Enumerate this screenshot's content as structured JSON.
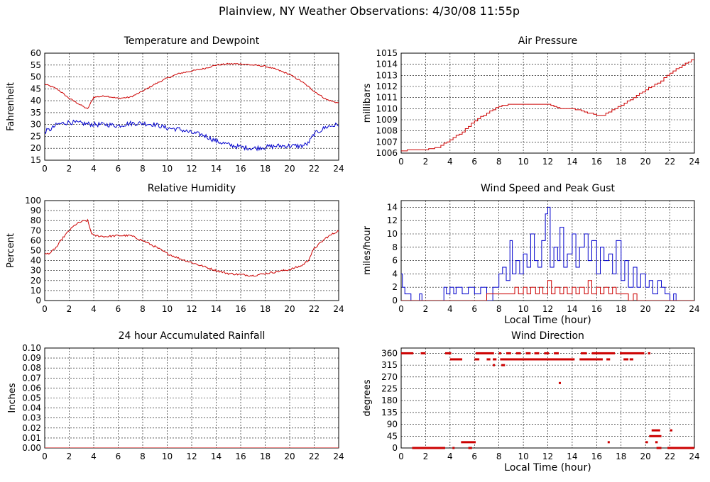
{
  "page": {
    "title": "Plainview, NY Weather Observations: 4/30/08 11:55p"
  },
  "colors": {
    "temperature": "#cc0000",
    "dewpoint": "#0000cc",
    "grid": "#000000"
  },
  "chart_data": [
    {
      "id": "temp",
      "type": "line",
      "title": "Temperature and Dewpoint",
      "xlabel": "",
      "ylabel": "Fahrenheit",
      "xlim": [
        0,
        24
      ],
      "ylim": [
        15,
        60
      ],
      "xticks": [
        0,
        2,
        4,
        6,
        8,
        10,
        12,
        14,
        16,
        18,
        20,
        22,
        24
      ],
      "yticks": [
        15,
        20,
        25,
        30,
        35,
        40,
        45,
        50,
        55,
        60
      ],
      "grid": true,
      "series": [
        {
          "color": "#cc0000",
          "noise": 0.3,
          "x": [
            0,
            1,
            2,
            3,
            3.5,
            3.7,
            4,
            5,
            6,
            7,
            8,
            9,
            10,
            11,
            12,
            13,
            14,
            15,
            16,
            17,
            18,
            19,
            20,
            21,
            22,
            23,
            24
          ],
          "y": [
            47,
            45,
            41,
            38,
            36.5,
            38.5,
            41.5,
            42,
            41,
            41.5,
            44,
            47,
            49.5,
            51.5,
            52.5,
            53.5,
            55,
            55.5,
            55.5,
            55,
            54.5,
            53,
            51,
            48,
            44,
            40.5,
            39
          ]
        },
        {
          "color": "#0000cc",
          "noise": 1.0,
          "x": [
            0,
            0.5,
            1,
            2,
            3,
            4,
            5,
            6,
            7,
            8,
            9,
            10,
            11,
            12,
            13,
            14,
            15,
            16,
            17,
            18,
            19,
            20,
            21,
            21.5,
            22,
            23,
            24
          ],
          "y": [
            27,
            28,
            30,
            31,
            30.5,
            30,
            30,
            29.5,
            30.5,
            30.5,
            30,
            28.5,
            28,
            26.5,
            25.5,
            23,
            21.5,
            20.5,
            20,
            20.5,
            21,
            21,
            21,
            22,
            26,
            29,
            30
          ]
        }
      ]
    },
    {
      "id": "pressure",
      "type": "line",
      "title": "Air Pressure",
      "xlabel": "",
      "ylabel": "millibars",
      "xlim": [
        0,
        24
      ],
      "ylim": [
        1006,
        1015
      ],
      "xticks": [
        0,
        2,
        4,
        6,
        8,
        10,
        12,
        14,
        16,
        18,
        20,
        22,
        24
      ],
      "yticks": [
        1006,
        1007,
        1008,
        1009,
        1010,
        1011,
        1012,
        1013,
        1014,
        1015
      ],
      "grid": true,
      "series": [
        {
          "color": "#cc0000",
          "noise": 0,
          "x": [
            0,
            1,
            2,
            3,
            4,
            5,
            6,
            7,
            8,
            9,
            10,
            11,
            12,
            13,
            14,
            15,
            16,
            16.5,
            17,
            18,
            19,
            20,
            21,
            22,
            23,
            24
          ],
          "y": [
            1006.2,
            1006.3,
            1006.3,
            1006.5,
            1007.2,
            1007.9,
            1008.9,
            1009.6,
            1010.2,
            1010.4,
            1010.4,
            1010.4,
            1010.4,
            1010.0,
            1010.0,
            1009.7,
            1009.4,
            1009.4,
            1009.7,
            1010.3,
            1011.0,
            1011.7,
            1012.3,
            1013.2,
            1013.9,
            1014.5
          ]
        }
      ]
    },
    {
      "id": "humidity",
      "type": "line",
      "title": "Relative Humidity",
      "xlabel": "",
      "ylabel": "Percent",
      "xlim": [
        0,
        24
      ],
      "ylim": [
        0,
        100
      ],
      "xticks": [
        0,
        2,
        4,
        6,
        8,
        10,
        12,
        14,
        16,
        18,
        20,
        22,
        24
      ],
      "yticks": [
        0,
        10,
        20,
        30,
        40,
        50,
        60,
        70,
        80,
        90,
        100
      ],
      "grid": true,
      "series": [
        {
          "color": "#cc0000",
          "noise": 1.0,
          "x": [
            0,
            0.5,
            1,
            1.5,
            2,
            2.5,
            3,
            3.5,
            3.8,
            4,
            5,
            6,
            7,
            8,
            9,
            10,
            11,
            12,
            13,
            14,
            15,
            16,
            17,
            18,
            19,
            20,
            21,
            21.5,
            22,
            23,
            24
          ],
          "y": [
            46,
            48,
            54,
            63,
            70,
            76,
            79,
            80,
            68,
            65,
            64,
            65,
            65,
            60,
            54,
            47,
            42,
            38,
            34,
            30,
            27,
            26,
            25,
            27,
            29,
            31,
            35,
            40,
            52,
            63,
            70
          ]
        }
      ]
    },
    {
      "id": "wind",
      "type": "line",
      "title": "Wind Speed and Peak Gust",
      "xlabel": "Local Time (hour)",
      "ylabel": "miles/hour",
      "xlim": [
        0,
        24
      ],
      "ylim": [
        0,
        15
      ],
      "xticks": [
        0,
        2,
        4,
        6,
        8,
        10,
        12,
        14,
        16,
        18,
        20,
        22,
        24
      ],
      "yticks": [
        0,
        2,
        4,
        6,
        8,
        10,
        12,
        14
      ],
      "grid": true,
      "series": [
        {
          "color": "#0000cc",
          "noise": 0,
          "x": [
            0,
            0.1,
            0.3,
            0.5,
            0.8,
            1,
            1.5,
            1.7,
            2,
            2.5,
            3,
            3.3,
            3.5,
            3.7,
            4,
            4.3,
            4.5,
            5,
            5.5,
            6,
            6.5,
            7,
            7.5,
            8,
            8.3,
            8.6,
            8.9,
            9.1,
            9.4,
            9.7,
            10,
            10.3,
            10.6,
            10.9,
            11.2,
            11.5,
            11.8,
            12,
            12.2,
            12.5,
            12.8,
            13,
            13.3,
            13.6,
            14,
            14.3,
            14.6,
            15,
            15.3,
            15.6,
            16,
            16.3,
            16.6,
            17,
            17.3,
            17.6,
            18,
            18.3,
            18.6,
            19,
            19.3,
            19.6,
            20,
            20.3,
            20.6,
            21,
            21.3,
            21.6,
            22,
            22.3,
            22.5,
            24
          ],
          "y": [
            4,
            2,
            1,
            1,
            0,
            0,
            1,
            0,
            0,
            0,
            0,
            0,
            2,
            1,
            2,
            1,
            2,
            1,
            2,
            1,
            2,
            0,
            2,
            4,
            5,
            3,
            9,
            4,
            6,
            4,
            7,
            5,
            10,
            6,
            5,
            9,
            13,
            14,
            5,
            8,
            6,
            11,
            5,
            7,
            10,
            5,
            8,
            10,
            6,
            9,
            4,
            8,
            6,
            7,
            4,
            9,
            3,
            6,
            2,
            5,
            2,
            4,
            2,
            3,
            1,
            3,
            2,
            1,
            0,
            1,
            0,
            0
          ]
        },
        {
          "color": "#cc0000",
          "noise": 0,
          "x": [
            0,
            6.5,
            7,
            7.5,
            8,
            8.5,
            9,
            9.3,
            9.6,
            10,
            10.3,
            10.6,
            11,
            11.3,
            11.6,
            12,
            12.3,
            12.6,
            13,
            13.3,
            13.6,
            14,
            14.3,
            14.6,
            15,
            15.3,
            15.6,
            16,
            16.3,
            16.6,
            17,
            17.3,
            17.6,
            18,
            18.3,
            18.6,
            19,
            19.3,
            19.6,
            24
          ],
          "y": [
            0,
            0,
            1,
            1,
            1,
            1,
            1,
            2,
            1,
            2,
            1,
            2,
            1,
            2,
            1,
            3,
            1,
            2,
            1,
            2,
            1,
            2,
            1,
            2,
            1,
            3,
            1,
            2,
            1,
            2,
            1,
            2,
            1,
            1,
            1,
            0,
            1,
            0,
            0,
            0
          ]
        }
      ]
    },
    {
      "id": "rain",
      "type": "line",
      "title": "24 hour Accumulated Rainfall",
      "xlabel": "",
      "ylabel": "Inches",
      "xlim": [
        0,
        24
      ],
      "ylim": [
        0,
        0.1
      ],
      "xticks": [
        0,
        2,
        4,
        6,
        8,
        10,
        12,
        14,
        16,
        18,
        20,
        22,
        24
      ],
      "yticks": [
        "0.00",
        "0.01",
        "0.02",
        "0.03",
        "0.04",
        "0.05",
        "0.06",
        "0.07",
        "0.08",
        "0.09",
        "0.10"
      ],
      "grid": true,
      "series": [
        {
          "color": "#cc0000",
          "noise": 0,
          "x": [
            0,
            24
          ],
          "y": [
            0,
            0
          ]
        }
      ]
    },
    {
      "id": "direction",
      "type": "scatter",
      "title": "Wind Direction",
      "xlabel": "Local Time (hour)",
      "ylabel": "degrees",
      "xlim": [
        0,
        24
      ],
      "ylim": [
        0,
        380
      ],
      "xticks": [
        0,
        2,
        4,
        6,
        8,
        10,
        12,
        14,
        16,
        18,
        20,
        22,
        24
      ],
      "yticks": [
        0,
        45,
        90,
        135,
        180,
        225,
        270,
        315,
        360
      ],
      "grid": true,
      "segments": [
        {
          "y": 360,
          "ranges": [
            [
              0,
              1.0
            ],
            [
              1.6,
              2.0
            ],
            [
              3.6,
              4.1
            ],
            [
              6.1,
              7.6
            ],
            [
              8.0,
              8.2
            ],
            [
              8.6,
              9.0
            ],
            [
              9.4,
              9.8
            ],
            [
              10.2,
              10.6
            ],
            [
              10.9,
              11.3
            ],
            [
              11.7,
              12.1
            ],
            [
              12.5,
              12.9
            ],
            [
              14.7,
              15.2
            ],
            [
              15.6,
              17.5
            ],
            [
              17.9,
              19.9
            ],
            [
              20.2,
              20.4
            ]
          ]
        },
        {
          "y": 337,
          "ranges": [
            [
              4.0,
              5.0
            ],
            [
              6.0,
              6.4
            ],
            [
              7.0,
              7.3
            ],
            [
              7.5,
              7.8
            ],
            [
              8.1,
              14.2
            ],
            [
              14.6,
              16.5
            ],
            [
              16.8,
              17.1
            ],
            [
              18.2,
              18.6
            ],
            [
              18.7,
              19.0
            ]
          ]
        },
        {
          "y": 315,
          "ranges": [
            [
              7.5,
              7.6
            ],
            [
              8.2,
              8.5
            ]
          ]
        },
        {
          "y": 247,
          "ranges": [
            [
              12.9,
              13.0
            ]
          ]
        },
        {
          "y": 67,
          "ranges": [
            [
              20.5,
              21.2
            ],
            [
              22.0,
              22.2
            ]
          ]
        },
        {
          "y": 45,
          "ranges": [
            [
              20.3,
              21.3
            ]
          ]
        },
        {
          "y": 22,
          "ranges": [
            [
              4.9,
              6.1
            ],
            [
              16.9,
              17.0
            ],
            [
              20.0,
              20.2
            ],
            [
              20.8,
              21.0
            ]
          ]
        },
        {
          "y": 0,
          "ranges": [
            [
              0.9,
              3.6
            ],
            [
              4.2,
              4.3
            ],
            [
              5.5,
              5.8
            ],
            [
              20.9,
              21.3
            ],
            [
              21.8,
              24.0
            ]
          ]
        }
      ]
    }
  ]
}
